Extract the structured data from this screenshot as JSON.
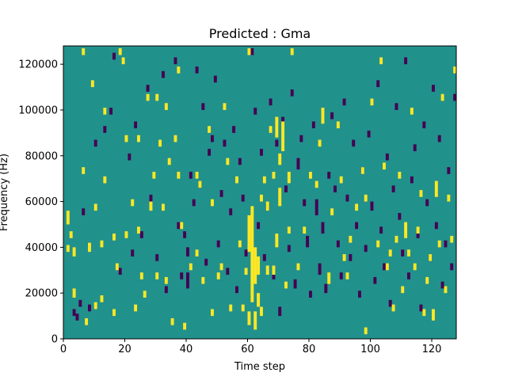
{
  "chart_data": {
    "type": "heatmap",
    "title": "Predicted : Gma",
    "xlabel": "Time step",
    "ylabel": "Frequency (Hz)",
    "xlim": [
      0,
      128
    ],
    "ylim": [
      0,
      128000
    ],
    "xticks": [
      0,
      20,
      40,
      60,
      80,
      100,
      120
    ],
    "yticks": [
      0,
      20000,
      40000,
      60000,
      80000,
      100000,
      120000
    ],
    "xtick_labels": [
      "0",
      "20",
      "40",
      "60",
      "80",
      "100",
      "120"
    ],
    "ytick_labels": [
      "0",
      "20000",
      "40000",
      "60000",
      "80000",
      "100000",
      "120000"
    ],
    "n_time_steps": 128,
    "n_freq_bins": 128,
    "value_range": [
      -1,
      1
    ],
    "colormap": "viridis",
    "colors": {
      "low": "#440154",
      "mid": "#21918c",
      "high": "#fde725"
    },
    "cells_high": [
      [
        1,
        50,
        56
      ],
      [
        1,
        38,
        41
      ],
      [
        2,
        44,
        47
      ],
      [
        3,
        36,
        40
      ],
      [
        3,
        18,
        22
      ],
      [
        6,
        124,
        127
      ],
      [
        6,
        72,
        75
      ],
      [
        7,
        6,
        9
      ],
      [
        8,
        38,
        42
      ],
      [
        9,
        110,
        113
      ],
      [
        10,
        56,
        59
      ],
      [
        10,
        13,
        16
      ],
      [
        12,
        16,
        19
      ],
      [
        12,
        40,
        43
      ],
      [
        13,
        98,
        101
      ],
      [
        13,
        68,
        71
      ],
      [
        16,
        43,
        46
      ],
      [
        16,
        10,
        13
      ],
      [
        17,
        30,
        33
      ],
      [
        18,
        124,
        127
      ],
      [
        19,
        120,
        123
      ],
      [
        20,
        86,
        89
      ],
      [
        20,
        44,
        47
      ],
      [
        22,
        58,
        61
      ],
      [
        23,
        12,
        15
      ],
      [
        24,
        86,
        89
      ],
      [
        24,
        46,
        49
      ],
      [
        25,
        26,
        29
      ],
      [
        26,
        18,
        21
      ],
      [
        27,
        104,
        107
      ],
      [
        28,
        56,
        60
      ],
      [
        29,
        70,
        73
      ],
      [
        30,
        104,
        107
      ],
      [
        30,
        26,
        29
      ],
      [
        31,
        84,
        87
      ],
      [
        32,
        56,
        59
      ],
      [
        33,
        100,
        103
      ],
      [
        33,
        24,
        27
      ],
      [
        34,
        76,
        79
      ],
      [
        35,
        6,
        9
      ],
      [
        36,
        86,
        89
      ],
      [
        37,
        116,
        119
      ],
      [
        37,
        70,
        73
      ],
      [
        38,
        48,
        51
      ],
      [
        39,
        4,
        7
      ],
      [
        41,
        30,
        33
      ],
      [
        43,
        70,
        73
      ],
      [
        43,
        36,
        39
      ],
      [
        44,
        66,
        69
      ],
      [
        45,
        24,
        27
      ],
      [
        47,
        90,
        93
      ],
      [
        48,
        58,
        61
      ],
      [
        48,
        10,
        13
      ],
      [
        50,
        26,
        29
      ],
      [
        51,
        30,
        33
      ],
      [
        52,
        100,
        103
      ],
      [
        53,
        76,
        79
      ],
      [
        54,
        12,
        15
      ],
      [
        56,
        68,
        71
      ],
      [
        57,
        40,
        43
      ],
      [
        58,
        12,
        15
      ],
      [
        59,
        28,
        31
      ],
      [
        60,
        38,
        54
      ],
      [
        60,
        6,
        12
      ],
      [
        61,
        16,
        58
      ],
      [
        62,
        24,
        40
      ],
      [
        62,
        4,
        12
      ],
      [
        63,
        14,
        20
      ],
      [
        63,
        28,
        36
      ],
      [
        64,
        60,
        63
      ],
      [
        64,
        10,
        14
      ],
      [
        65,
        68,
        71
      ],
      [
        66,
        28,
        32
      ],
      [
        66,
        56,
        60
      ],
      [
        67,
        90,
        93
      ],
      [
        68,
        70,
        73
      ],
      [
        68,
        28,
        32
      ],
      [
        69,
        40,
        46
      ],
      [
        69,
        88,
        97
      ],
      [
        70,
        58,
        66
      ],
      [
        70,
        76,
        81
      ],
      [
        71,
        82,
        95
      ],
      [
        72,
        22,
        25
      ],
      [
        73,
        68,
        73
      ],
      [
        73,
        46,
        49
      ],
      [
        74,
        124,
        127
      ],
      [
        76,
        30,
        33
      ],
      [
        78,
        46,
        49
      ],
      [
        80,
        70,
        73
      ],
      [
        82,
        66,
        69
      ],
      [
        83,
        84,
        87
      ],
      [
        84,
        94,
        101
      ],
      [
        86,
        24,
        29
      ],
      [
        87,
        54,
        57
      ],
      [
        89,
        92,
        95
      ],
      [
        90,
        68,
        71
      ],
      [
        91,
        34,
        37
      ],
      [
        92,
        26,
        29
      ],
      [
        93,
        42,
        45
      ],
      [
        95,
        56,
        59
      ],
      [
        97,
        72,
        75
      ],
      [
        98,
        2,
        5
      ],
      [
        98,
        60,
        63
      ],
      [
        100,
        102,
        105
      ],
      [
        102,
        40,
        43
      ],
      [
        103,
        120,
        123
      ],
      [
        104,
        74,
        77
      ],
      [
        105,
        30,
        33
      ],
      [
        106,
        36,
        39
      ],
      [
        107,
        12,
        15
      ],
      [
        108,
        42,
        45
      ],
      [
        109,
        70,
        73
      ],
      [
        110,
        20,
        23
      ],
      [
        111,
        44,
        51
      ],
      [
        112,
        36,
        39
      ],
      [
        113,
        98,
        101
      ],
      [
        114,
        30,
        33
      ],
      [
        115,
        46,
        49
      ],
      [
        116,
        62,
        65
      ],
      [
        117,
        10,
        13
      ],
      [
        118,
        24,
        27
      ],
      [
        119,
        34,
        37
      ],
      [
        120,
        8,
        13
      ],
      [
        121,
        62,
        69
      ],
      [
        122,
        40,
        43
      ],
      [
        123,
        104,
        107
      ],
      [
        124,
        20,
        23
      ],
      [
        125,
        60,
        63
      ],
      [
        126,
        42,
        45
      ],
      [
        127,
        116,
        119
      ],
      [
        60,
        124,
        127
      ]
    ],
    "cells_low": [
      [
        3,
        10,
        13
      ],
      [
        4,
        8,
        11
      ],
      [
        5,
        14,
        17
      ],
      [
        6,
        54,
        57
      ],
      [
        8,
        12,
        15
      ],
      [
        10,
        84,
        87
      ],
      [
        13,
        90,
        93
      ],
      [
        15,
        98,
        101
      ],
      [
        16,
        122,
        125
      ],
      [
        18,
        28,
        31
      ],
      [
        21,
        78,
        81
      ],
      [
        22,
        36,
        39
      ],
      [
        23,
        92,
        95
      ],
      [
        25,
        44,
        47
      ],
      [
        27,
        108,
        111
      ],
      [
        28,
        60,
        63
      ],
      [
        30,
        34,
        37
      ],
      [
        32,
        114,
        117
      ],
      [
        33,
        20,
        23
      ],
      [
        36,
        120,
        123
      ],
      [
        37,
        48,
        51
      ],
      [
        38,
        26,
        29
      ],
      [
        39,
        44,
        47
      ],
      [
        40,
        22,
        29
      ],
      [
        40,
        36,
        40
      ],
      [
        41,
        70,
        73
      ],
      [
        42,
        58,
        61
      ],
      [
        43,
        116,
        119
      ],
      [
        44,
        66,
        69
      ],
      [
        45,
        100,
        103
      ],
      [
        46,
        32,
        35
      ],
      [
        47,
        80,
        83
      ],
      [
        48,
        86,
        89
      ],
      [
        49,
        112,
        115
      ],
      [
        50,
        40,
        43
      ],
      [
        51,
        62,
        65
      ],
      [
        52,
        84,
        87
      ],
      [
        53,
        28,
        31
      ],
      [
        54,
        54,
        57
      ],
      [
        55,
        90,
        93
      ],
      [
        56,
        20,
        23
      ],
      [
        57,
        76,
        79
      ],
      [
        58,
        60,
        63
      ],
      [
        59,
        36,
        39
      ],
      [
        61,
        124,
        127
      ],
      [
        62,
        98,
        101
      ],
      [
        63,
        48,
        51
      ],
      [
        64,
        80,
        83
      ],
      [
        65,
        34,
        37
      ],
      [
        66,
        56,
        59
      ],
      [
        67,
        102,
        105
      ],
      [
        68,
        26,
        29
      ],
      [
        69,
        84,
        87
      ],
      [
        70,
        10,
        14
      ],
      [
        71,
        94,
        97
      ],
      [
        72,
        64,
        67
      ],
      [
        73,
        38,
        41
      ],
      [
        74,
        106,
        109
      ],
      [
        75,
        22,
        26
      ],
      [
        76,
        74,
        79
      ],
      [
        77,
        86,
        89
      ],
      [
        78,
        58,
        61
      ],
      [
        79,
        40,
        45
      ],
      [
        80,
        18,
        21
      ],
      [
        81,
        92,
        95
      ],
      [
        82,
        54,
        61
      ],
      [
        83,
        28,
        33
      ],
      [
        84,
        46,
        51
      ],
      [
        85,
        20,
        24
      ],
      [
        86,
        70,
        73
      ],
      [
        87,
        96,
        99
      ],
      [
        88,
        64,
        67
      ],
      [
        89,
        40,
        43
      ],
      [
        90,
        26,
        29
      ],
      [
        91,
        102,
        105
      ],
      [
        92,
        60,
        63
      ],
      [
        93,
        34,
        37
      ],
      [
        94,
        84,
        87
      ],
      [
        95,
        48,
        51
      ],
      [
        96,
        18,
        21
      ],
      [
        97,
        72,
        75
      ],
      [
        98,
        38,
        41
      ],
      [
        99,
        88,
        91
      ],
      [
        100,
        56,
        60
      ],
      [
        101,
        24,
        27
      ],
      [
        102,
        110,
        113
      ],
      [
        103,
        46,
        49
      ],
      [
        104,
        30,
        33
      ],
      [
        105,
        78,
        81
      ],
      [
        106,
        14,
        17
      ],
      [
        107,
        64,
        67
      ],
      [
        108,
        100,
        103
      ],
      [
        109,
        52,
        55
      ],
      [
        110,
        36,
        39
      ],
      [
        111,
        120,
        123
      ],
      [
        112,
        26,
        29
      ],
      [
        113,
        68,
        71
      ],
      [
        114,
        82,
        85
      ],
      [
        115,
        44,
        47
      ],
      [
        116,
        12,
        15
      ],
      [
        117,
        92,
        95
      ],
      [
        118,
        58,
        61
      ],
      [
        119,
        34,
        37
      ],
      [
        120,
        108,
        111
      ],
      [
        121,
        48,
        51
      ],
      [
        122,
        86,
        89
      ],
      [
        123,
        22,
        25
      ],
      [
        124,
        40,
        43
      ],
      [
        125,
        72,
        75
      ],
      [
        126,
        30,
        33
      ],
      [
        127,
        104,
        107
      ]
    ]
  }
}
